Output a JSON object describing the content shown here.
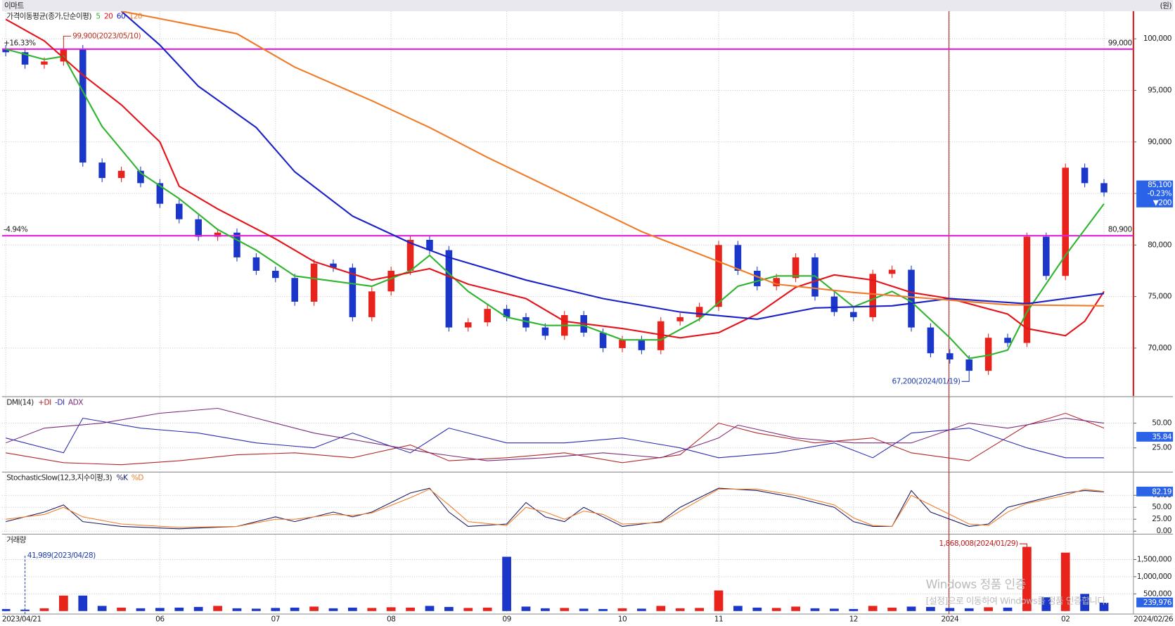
{
  "header": {
    "title": "이마트",
    "unit": "(원)"
  },
  "chart_data": [
    {
      "type": "candlestick",
      "title": "가격이동평균(종가,단순이평)",
      "up_color": "#e8231c",
      "down_color": "#1b37c9",
      "open": [
        99000,
        98700,
        97500,
        97800,
        99000,
        88000,
        86500,
        87200,
        86000,
        84000,
        82500,
        80800,
        81200,
        78800,
        77500,
        76800,
        74500,
        78200,
        77800,
        73000,
        75500,
        77500,
        80500,
        79500,
        72000,
        72500,
        73800,
        73000,
        72000,
        71200,
        73200,
        71500,
        70000,
        70800,
        69800,
        72600,
        73000,
        74000,
        80000,
        77500,
        76000,
        76800,
        78800,
        75000,
        73500,
        73000,
        77200,
        77600,
        72000,
        69500,
        68900,
        67800,
        71000,
        70500,
        80800,
        77000,
        87500,
        86000
      ],
      "high": [
        99400,
        99100,
        98200,
        99900,
        99400,
        88400,
        87600,
        87600,
        86400,
        84400,
        82900,
        81600,
        81600,
        79200,
        77900,
        77200,
        78600,
        78600,
        78200,
        75900,
        77900,
        80900,
        80900,
        79900,
        72900,
        74200,
        74200,
        73400,
        72400,
        73600,
        73600,
        71900,
        71200,
        71200,
        73000,
        73400,
        74400,
        80400,
        80400,
        77900,
        77200,
        79200,
        79200,
        75400,
        73900,
        77600,
        78000,
        78000,
        72400,
        69900,
        69300,
        71400,
        71400,
        81200,
        81200,
        87900,
        87900,
        86400
      ],
      "low": [
        98300,
        97100,
        97100,
        97400,
        87600,
        86100,
        86100,
        85600,
        83600,
        82100,
        80400,
        80400,
        78400,
        77100,
        76400,
        74100,
        74100,
        77400,
        72600,
        72600,
        75100,
        77100,
        79100,
        71600,
        71600,
        72100,
        72600,
        71600,
        70800,
        70800,
        71100,
        69600,
        69600,
        69400,
        69400,
        72200,
        72600,
        73600,
        77100,
        75600,
        75600,
        76400,
        74600,
        73100,
        72600,
        72600,
        76800,
        71600,
        69100,
        68500,
        67200,
        67400,
        70100,
        70100,
        76600,
        76600,
        85600,
        84700
      ],
      "close": [
        98700,
        97500,
        97800,
        99000,
        88000,
        86500,
        87200,
        86000,
        84000,
        82500,
        80800,
        81200,
        78800,
        77500,
        76800,
        74500,
        78200,
        77800,
        73000,
        75500,
        77500,
        80500,
        79500,
        72000,
        72500,
        73800,
        73000,
        72000,
        71200,
        73200,
        71500,
        70000,
        70800,
        69800,
        72600,
        73000,
        74000,
        80000,
        77500,
        76000,
        76800,
        78800,
        75000,
        73500,
        73000,
        77200,
        77600,
        72000,
        69500,
        68900,
        67800,
        71000,
        70500,
        80800,
        77000,
        87500,
        86000,
        85100
      ],
      "series": [
        {
          "name": "5",
          "color": "#2fb52f",
          "x": [
            0,
            2,
            3,
            5,
            7,
            9,
            11,
            13,
            15,
            17,
            19,
            21,
            22,
            24,
            26,
            28,
            30,
            32,
            34,
            36,
            38,
            40,
            42,
            44,
            46,
            47,
            49,
            50,
            51,
            52,
            53,
            55,
            57
          ],
          "values": [
            99000,
            98000,
            98300,
            91500,
            87000,
            84500,
            81500,
            79500,
            77000,
            76500,
            76000,
            77500,
            79000,
            75500,
            73000,
            72200,
            72200,
            70800,
            70800,
            72800,
            76000,
            77000,
            77000,
            74000,
            75500,
            74500,
            71000,
            69000,
            69300,
            69800,
            73500,
            79000,
            84000
          ]
        },
        {
          "name": "20",
          "color": "#e5141b",
          "x": [
            0,
            2,
            4,
            6,
            8,
            9,
            11,
            14,
            16,
            19,
            22,
            24,
            27,
            29,
            32,
            35,
            37,
            39,
            41,
            43,
            45,
            47,
            49,
            52,
            53,
            55,
            56,
            57
          ],
          "values": [
            101900,
            99800,
            96500,
            93600,
            90000,
            85700,
            83500,
            80600,
            78400,
            76600,
            77700,
            76200,
            74800,
            72600,
            71900,
            71000,
            71500,
            73300,
            75900,
            77100,
            76600,
            75400,
            74800,
            73300,
            71900,
            71200,
            72600,
            75500
          ]
        },
        {
          "name": "60",
          "color": "#1a22c8",
          "x": [
            6,
            8,
            10,
            13,
            15,
            18,
            21,
            23,
            27,
            31,
            35,
            39,
            42,
            46,
            49,
            53,
            57
          ],
          "values": [
            102680,
            99400,
            95400,
            91400,
            87100,
            82800,
            80200,
            78800,
            76600,
            74800,
            73500,
            72800,
            73900,
            74100,
            74800,
            74300,
            75300
          ]
        },
        {
          "name": "120",
          "color": "#f07c2a",
          "x": [
            6,
            12,
            15,
            19,
            22,
            25,
            29,
            33,
            37,
            40,
            44,
            48,
            52,
            57
          ],
          "values": [
            102680,
            100500,
            97250,
            94000,
            91400,
            88500,
            84900,
            81300,
            78400,
            76200,
            75400,
            74800,
            74200,
            74100
          ]
        }
      ],
      "ylim": [
        65360,
        102680
      ],
      "yticks": [
        {
          "value": 70000,
          "label": "70,000"
        },
        {
          "value": 75000,
          "label": "75,000"
        },
        {
          "value": 80000,
          "label": "80,000"
        },
        {
          "value": 85000,
          "label": "85,000"
        },
        {
          "value": 90000,
          "label": "90,000"
        },
        {
          "value": 95000,
          "label": "95,000"
        },
        {
          "value": 100000,
          "label": "100,000"
        }
      ],
      "hlines": [
        {
          "value": 99000,
          "label": "99,000",
          "pct": "+16.33%"
        },
        {
          "value": 80900,
          "label": "80,900",
          "pct": "-4.94%"
        }
      ],
      "hline_color": "#e020d8",
      "annotations": [
        {
          "text": "99,900(2023/05/10)",
          "index": 3,
          "value": 99900
        },
        {
          "text": "67,200(2024/01/19)",
          "index": 50,
          "value": 67200
        }
      ],
      "last": {
        "price": "85,100",
        "change": "-0.23%",
        "diff": "▼200"
      }
    },
    {
      "type": "line",
      "title": "DMI(14)",
      "series": [
        {
          "name": "+DI",
          "color": "#b3262a",
          "x": [
            0,
            3,
            6,
            9,
            12,
            15,
            18,
            21,
            23,
            26,
            29,
            32,
            35,
            37,
            39,
            42,
            45,
            47,
            50,
            53,
            55,
            57
          ],
          "values": [
            20,
            10,
            8,
            12,
            18,
            20,
            15,
            28,
            12,
            15,
            20,
            10,
            18,
            50,
            40,
            30,
            35,
            20,
            12,
            48,
            60,
            45
          ]
        },
        {
          "name": "-DI",
          "color": "#2a2ab0",
          "x": [
            0,
            3,
            4,
            7,
            10,
            13,
            16,
            18,
            21,
            23,
            26,
            29,
            32,
            35,
            37,
            40,
            43,
            45,
            47,
            50,
            53,
            55,
            57
          ],
          "values": [
            35,
            20,
            55,
            45,
            40,
            30,
            25,
            40,
            20,
            45,
            30,
            30,
            35,
            25,
            15,
            20,
            30,
            15,
            40,
            45,
            25,
            15,
            15
          ]
        },
        {
          "name": "ADX",
          "color": "#7a2a7a",
          "x": [
            0,
            2,
            5,
            8,
            11,
            13,
            16,
            19,
            22,
            25,
            28,
            31,
            34,
            37,
            38,
            41,
            44,
            47,
            50,
            52,
            55,
            57
          ],
          "values": [
            30,
            45,
            50,
            60,
            65,
            55,
            40,
            30,
            20,
            12,
            15,
            20,
            15,
            35,
            48,
            35,
            30,
            30,
            50,
            45,
            55,
            50
          ]
        }
      ],
      "ylim": [
        2,
        76
      ],
      "yticks": [
        {
          "value": 25,
          "label": "25.00"
        },
        {
          "value": 50,
          "label": "50.00"
        }
      ],
      "last_value": 35.84
    },
    {
      "type": "line",
      "title": "StochasticSlow(12,3,지수이평,3)",
      "series": [
        {
          "name": "%K",
          "color": "#1a1a60",
          "x": [
            0,
            2,
            3,
            4,
            6,
            9,
            12,
            14,
            15,
            17,
            18,
            19,
            21,
            22,
            23,
            24,
            26,
            27,
            28,
            29,
            30,
            31,
            32,
            34,
            35,
            36,
            37,
            39,
            41,
            43,
            44,
            45,
            46,
            47,
            48,
            50,
            51,
            52,
            53,
            55,
            56,
            57
          ],
          "values": [
            20,
            40,
            55,
            20,
            10,
            5,
            10,
            30,
            20,
            40,
            30,
            40,
            80,
            90,
            40,
            10,
            15,
            60,
            30,
            20,
            50,
            30,
            10,
            20,
            50,
            70,
            90,
            85,
            70,
            50,
            20,
            10,
            10,
            85,
            40,
            10,
            15,
            50,
            60,
            80,
            85,
            82.19
          ]
        },
        {
          "name": "%D",
          "color": "#f07c2a",
          "x": [
            0,
            2,
            3,
            4,
            6,
            9,
            12,
            14,
            15,
            17,
            18,
            19,
            21,
            22,
            23,
            24,
            26,
            27,
            28,
            29,
            30,
            31,
            32,
            34,
            35,
            36,
            37,
            39,
            41,
            43,
            44,
            45,
            46,
            47,
            48,
            50,
            51,
            52,
            53,
            55,
            56,
            57
          ],
          "values": [
            25,
            35,
            50,
            30,
            15,
            8,
            10,
            25,
            25,
            35,
            33,
            38,
            70,
            88,
            55,
            20,
            12,
            50,
            40,
            25,
            42,
            35,
            15,
            18,
            42,
            65,
            88,
            88,
            75,
            55,
            28,
            12,
            10,
            75,
            55,
            15,
            12,
            40,
            58,
            75,
            88,
            83
          ]
        }
      ],
      "ylim": [
        -3,
        122
      ],
      "yticks": [
        {
          "value": 0,
          "label": "0.00"
        },
        {
          "value": 25,
          "label": "25.00"
        },
        {
          "value": 50,
          "label": "50.00"
        },
        {
          "value": 75,
          "label": "75.00"
        }
      ],
      "last_value": 82.19
    },
    {
      "type": "bar",
      "title": "거래량",
      "categories": [
        "2023/04/21",
        null,
        null,
        null,
        null,
        null,
        null,
        null,
        "06",
        null,
        null,
        null,
        null,
        null,
        "07",
        null,
        null,
        null,
        null,
        null,
        "08",
        null,
        null,
        null,
        null,
        null,
        "09",
        null,
        null,
        null,
        null,
        null,
        "10",
        null,
        null,
        null,
        null,
        "11",
        null,
        null,
        null,
        null,
        null,
        null,
        "12",
        null,
        null,
        null,
        null,
        "2024",
        null,
        null,
        null,
        null,
        null,
        "02",
        null,
        "2024/02/26"
      ],
      "values": [
        60000,
        41989,
        80000,
        450000,
        450000,
        150000,
        100000,
        80000,
        90000,
        100000,
        120000,
        150000,
        80000,
        70000,
        90000,
        100000,
        130000,
        80000,
        100000,
        90000,
        110000,
        100000,
        150000,
        120000,
        90000,
        100000,
        1580000,
        130000,
        80000,
        90000,
        70000,
        60000,
        80000,
        70000,
        150000,
        80000,
        90000,
        600000,
        150000,
        100000,
        90000,
        130000,
        80000,
        70000,
        60000,
        150000,
        100000,
        130000,
        120000,
        90000,
        80000,
        110000,
        100000,
        1868008,
        400000,
        1700000,
        500000,
        239976
      ],
      "ylim": [
        -87000,
        2217000
      ],
      "yticks": [
        {
          "value": 500000,
          "label": "500,000"
        },
        {
          "value": 1000000,
          "label": "1,000,000"
        },
        {
          "value": 1500000,
          "label": "1,500,000"
        }
      ],
      "last_label": "239,976",
      "annotations": [
        {
          "text": "41,989(2023/04/28)",
          "index": 1
        },
        {
          "text": "1,868,008(2024/01/29)",
          "index": 53
        }
      ]
    }
  ],
  "watermark": {
    "title": "Windows 정품 인증",
    "text": "[설정]으로 이동하여 Windows를 정품 인증합니다."
  }
}
